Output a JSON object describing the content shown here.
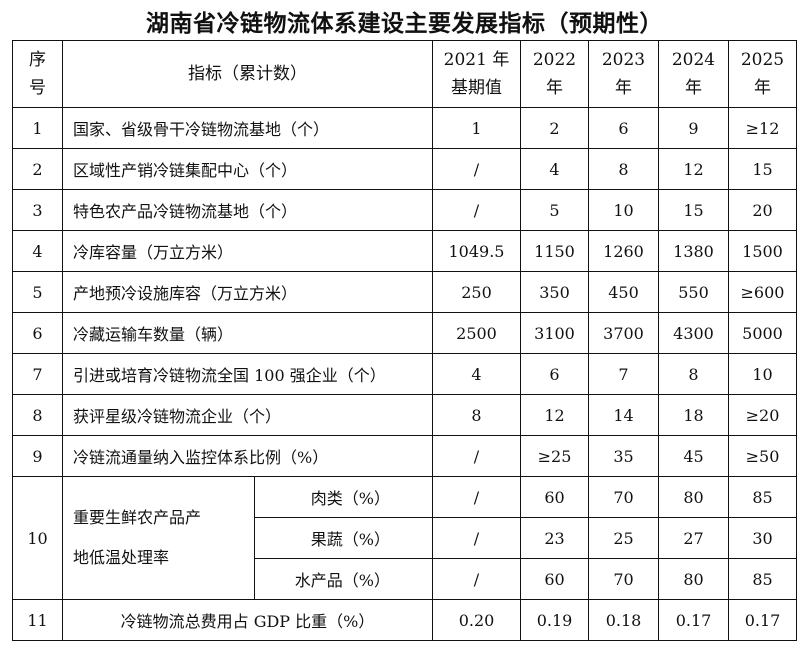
{
  "title": "湖南省冷链物流体系建设主要发展指标（预期性）",
  "header": {
    "seq": [
      "序",
      "号"
    ],
    "indicator": "指标（累计数）",
    "years": [
      [
        "2021 年",
        "基期值"
      ],
      [
        "2022",
        "年"
      ],
      [
        "2023",
        "年"
      ],
      [
        "2024",
        "年"
      ],
      [
        "2025",
        "年"
      ]
    ]
  },
  "rows": [
    {
      "seq": "1",
      "name": "国家、省级骨干冷链物流基地（个）",
      "values": [
        "1",
        "2",
        "6",
        "9",
        "≥12"
      ]
    },
    {
      "seq": "2",
      "name": "区域性产销冷链集配中心（个）",
      "values": [
        "/",
        "4",
        "8",
        "12",
        "15"
      ]
    },
    {
      "seq": "3",
      "name": "特色农产品冷链物流基地（个）",
      "values": [
        "/",
        "5",
        "10",
        "15",
        "20"
      ]
    },
    {
      "seq": "4",
      "name": "冷库容量（万立方米）",
      "values": [
        "1049.5",
        "1150",
        "1260",
        "1380",
        "1500"
      ]
    },
    {
      "seq": "5",
      "name": "产地预冷设施库容（万立方米）",
      "values": [
        "250",
        "350",
        "450",
        "550",
        "≥600"
      ]
    },
    {
      "seq": "6",
      "name": "冷藏运输车数量（辆）",
      "values": [
        "2500",
        "3100",
        "3700",
        "4300",
        "5000"
      ]
    },
    {
      "seq": "7",
      "name": "引进或培育冷链物流全国 100 强企业（个）",
      "values": [
        "4",
        "6",
        "7",
        "8",
        "10"
      ]
    },
    {
      "seq": "8",
      "name": "获评星级冷链物流企业（个）",
      "values": [
        "8",
        "12",
        "14",
        "18",
        "≥20"
      ]
    },
    {
      "seq": "9",
      "name": "冷链流通量纳入监控体系比例（%）",
      "values": [
        "/",
        "≥25",
        "35",
        "45",
        "≥50"
      ]
    }
  ],
  "group": {
    "seq": "10",
    "name": [
      "重要生鲜农产品产",
      "地低温处理率"
    ],
    "subrows": [
      {
        "name": "肉类（%）",
        "values": [
          "/",
          "60",
          "70",
          "80",
          "85"
        ]
      },
      {
        "name": "果蔬（%）",
        "values": [
          "/",
          "23",
          "25",
          "27",
          "30"
        ]
      },
      {
        "name": "水产品（%）",
        "values": [
          "/",
          "60",
          "70",
          "80",
          "85"
        ]
      }
    ]
  },
  "last": {
    "seq": "11",
    "name": "冷链物流总费用占 GDP 比重（%）",
    "values": [
      "0.20",
      "0.19",
      "0.18",
      "0.17",
      "0.17"
    ]
  }
}
